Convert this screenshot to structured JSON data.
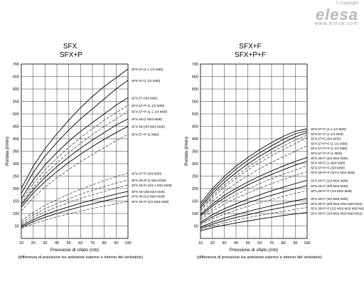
{
  "brand": {
    "copyright": "© Copyright",
    "logo": "elesa",
    "url": "www.elesa.com"
  },
  "chart_data": [
    {
      "type": "line",
      "title": "SFX.",
      "subtitle": "SFX+P",
      "xlabel": "Pressione di sfiato (mb)",
      "ylabel": "Portata (l/min)",
      "note": "(differenza di pressione tra ambiente esterno e interno del serbatoio)",
      "xlim": [
        10,
        100
      ],
      "ylim": [
        0,
        700
      ],
      "xticks": [
        10,
        20,
        30,
        40,
        50,
        60,
        70,
        80,
        90,
        100
      ],
      "yticks": [
        50,
        100,
        150,
        200,
        250,
        300,
        350,
        400,
        450,
        500,
        550,
        600,
        650,
        700
      ],
      "grid": true,
      "x": [
        10,
        20,
        30,
        40,
        50,
        60,
        70,
        80,
        90,
        100
      ],
      "series": [
        {
          "name": "SFX.57-(1-1 1/4 M30)",
          "style": "solid",
          "values": [
            200,
            290,
            360,
            420,
            475,
            525,
            570,
            610,
            645,
            680
          ]
        },
        {
          "name": "SFX.57-(1 1/2 M30)",
          "style": "solid",
          "values": [
            180,
            265,
            330,
            385,
            435,
            480,
            520,
            560,
            600,
            635
          ]
        },
        {
          "name": "SFX.57-(3/4 M30)",
          "style": "solid",
          "values": [
            160,
            235,
            295,
            345,
            390,
            430,
            465,
            500,
            535,
            565
          ]
        },
        {
          "name": "SFX.57+P-(1 1/2 M30)",
          "style": "dashed",
          "values": [
            150,
            220,
            275,
            322,
            365,
            405,
            440,
            475,
            505,
            535
          ]
        },
        {
          "name": "SFX.57+P-(1-1 1/4 M30)",
          "style": "dashed",
          "values": [
            140,
            205,
            258,
            303,
            344,
            382,
            417,
            450,
            480,
            510
          ]
        },
        {
          "name": "SFX.40-(1 M24 M28)",
          "style": "solid",
          "values": [
            135,
            195,
            245,
            288,
            327,
            362,
            395,
            425,
            455,
            480
          ]
        },
        {
          "name": "SFX.40-(3/4 M24 M28)",
          "style": "solid",
          "values": [
            125,
            182,
            228,
            268,
            305,
            338,
            369,
            398,
            425,
            450
          ]
        },
        {
          "name": "SFX.57+P-(1 M30)",
          "style": "dashed",
          "values": [
            110,
            163,
            206,
            243,
            277,
            308,
            337,
            365,
            392,
            418
          ]
        },
        {
          "name": "SFX.57+P-(3/4 M30)",
          "style": "dashed",
          "values": [
            70,
            105,
            132,
            156,
            178,
            197,
            215,
            232,
            248,
            262
          ]
        },
        {
          "name": "SFX.40+P-(1 M24 M28)",
          "style": "dashed",
          "values": [
            62,
            94,
            119,
            140,
            159,
            177,
            193,
            208,
            222,
            235
          ]
        },
        {
          "name": "SFX.40+P-(3/4-1 M24 M28)",
          "style": "dashed",
          "values": [
            55,
            84,
            107,
            126,
            144,
            160,
            175,
            189,
            202,
            215
          ]
        },
        {
          "name": "SFX.40-(3/8 M24 M28)",
          "style": "solid",
          "values": [
            50,
            75,
            95,
            112,
            127,
            141,
            154,
            166,
            178,
            189
          ]
        },
        {
          "name": "SFX.40-(1/2 M24 M28)",
          "style": "solid",
          "values": [
            45,
            67,
            85,
            100,
            114,
            127,
            139,
            150,
            161,
            171
          ]
        },
        {
          "name": "SFX.40+P-(1/2 M24 M28)",
          "style": "dashed",
          "values": [
            40,
            58,
            73,
            87,
            99,
            110,
            120,
            130,
            139,
            148
          ]
        }
      ]
    },
    {
      "type": "line",
      "title": "SFX+F",
      "subtitle": "SFX+P+F",
      "xlabel": "Pressione di sfiato (mb)",
      "ylabel": "Portata (l/min)",
      "note": "(differenza di pressione tra ambiente esterno e interno del serbatoio)",
      "xlim": [
        10,
        100
      ],
      "ylim": [
        0,
        700
      ],
      "xticks": [
        10,
        20,
        30,
        40,
        50,
        60,
        70,
        80,
        90,
        100
      ],
      "yticks": [
        50,
        100,
        150,
        200,
        250,
        300,
        350,
        400,
        450,
        500,
        550,
        600,
        650,
        700
      ],
      "grid": true,
      "x": [
        10,
        20,
        30,
        40,
        50,
        60,
        70,
        80,
        90,
        100
      ],
      "series": [
        {
          "name": "SFX.57+F-(1-1 1/4 M30)",
          "style": "solid",
          "values": [
            140,
            200,
            248,
            290,
            325,
            357,
            385,
            410,
            430,
            440
          ]
        },
        {
          "name": "SFX.57+F-(1 1/4 M30)",
          "style": "solid",
          "values": [
            130,
            190,
            237,
            278,
            313,
            344,
            372,
            398,
            420,
            432
          ]
        },
        {
          "name": "SFX.57+F-(3/4 M30)",
          "style": "solid",
          "values": [
            122,
            180,
            225,
            264,
            299,
            330,
            358,
            384,
            408,
            425
          ]
        },
        {
          "name": "SFX.57+P+F-(1 1/2 M30)",
          "style": "dashed",
          "values": [
            115,
            170,
            214,
            252,
            286,
            317,
            345,
            371,
            395,
            415
          ]
        },
        {
          "name": "SFX.57+P+F-(1 1/4 M30)",
          "style": "dashed",
          "values": [
            110,
            163,
            205,
            242,
            275,
            305,
            332,
            357,
            381,
            405
          ]
        },
        {
          "name": "SFX.57+P+F-(1 M30)",
          "style": "dashed",
          "values": [
            100,
            150,
            188,
            222,
            252,
            280,
            305,
            328,
            350,
            372
          ]
        },
        {
          "name": "SFX.40+F-(3/4 M24 M28)",
          "style": "solid",
          "values": [
            95,
            138,
            172,
            201,
            227,
            250,
            271,
            291,
            309,
            325
          ]
        },
        {
          "name": "SFX.40+F-(1 M24 M28)",
          "style": "solid",
          "values": [
            90,
            130,
            162,
            190,
            215,
            237,
            257,
            276,
            294,
            310
          ]
        },
        {
          "name": "SFX.57+P+F-(3/4 M30)",
          "style": "dashed",
          "values": [
            82,
            120,
            150,
            176,
            199,
            220,
            240,
            258,
            275,
            291
          ]
        },
        {
          "name": "SFX.40+P+F-(3/4-1 M24 M28)",
          "style": "dashed",
          "values": [
            75,
            110,
            137,
            161,
            182,
            202,
            220,
            237,
            253,
            268
          ]
        },
        {
          "name": "SFX.40+F-(1/2 M24 M28)",
          "style": "solid",
          "values": [
            65,
            95,
            119,
            139,
            158,
            175,
            191,
            206,
            220,
            233
          ]
        },
        {
          "name": "SFX.40+F-(3/8 M24 M28)",
          "style": "solid",
          "values": [
            60,
            86,
            108,
            126,
            143,
            159,
            173,
            187,
            200,
            212
          ]
        },
        {
          "name": "SFX.40+P+F-(1/2 M24 M28)",
          "style": "dashed",
          "values": [
            55,
            78,
            97,
            114,
            129,
            143,
            156,
            169,
            181,
            192
          ]
        },
        {
          "name": "SFX.30+F-(3/4 M18 M20)",
          "style": "solid",
          "values": [
            45,
            65,
            81,
            95,
            108,
            120,
            131,
            141,
            151,
            160
          ]
        },
        {
          "name": "SFX.30+F-(3/8 M16 M18 M20 M22)",
          "style": "solid",
          "values": [
            40,
            57,
            71,
            84,
            95,
            106,
            116,
            125,
            134,
            142
          ]
        },
        {
          "name": "SFX.30+P+F-(1/2 M16 M18 M20 M22)",
          "style": "dashed",
          "values": [
            35,
            50,
            62,
            73,
            83,
            92,
            101,
            109,
            117,
            124
          ]
        },
        {
          "name": "SFX.30+F-(1/4 M16 M18 M20 M22)",
          "style": "solid",
          "values": [
            30,
            43,
            53,
            62,
            70,
            78,
            85,
            92,
            98,
            104
          ]
        }
      ]
    }
  ]
}
